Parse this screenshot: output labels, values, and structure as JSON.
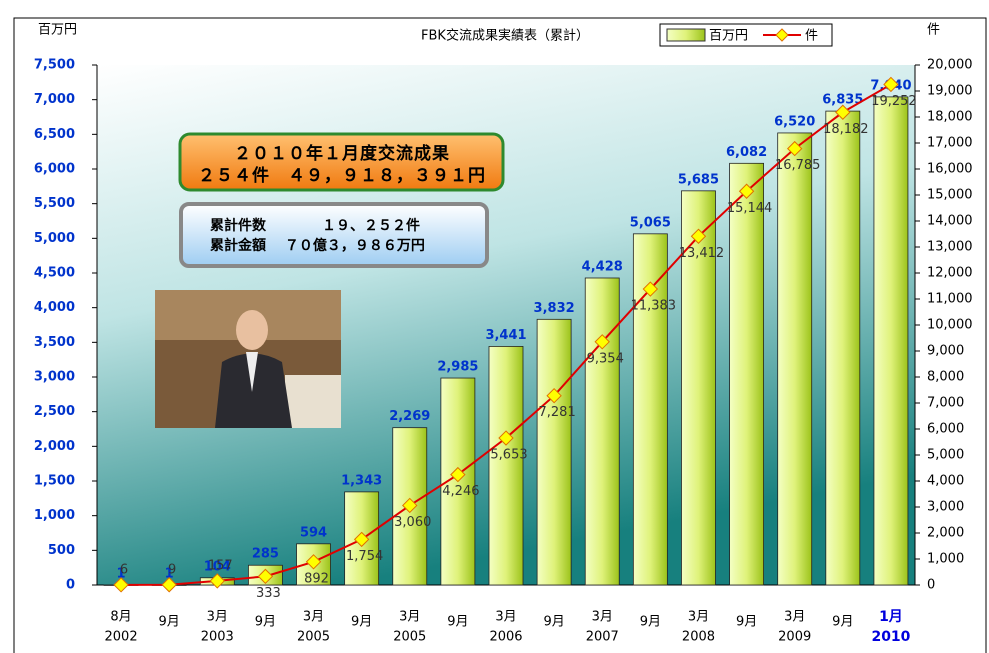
{
  "chart_data": {
    "type": "bar_line",
    "title": "FBK交流成果実績表（累計）",
    "y_axis_label": "百万円",
    "y2_axis_label": "件",
    "categories": [
      "8月",
      "9月",
      "3月",
      "9月",
      "3月",
      "9月",
      "3月",
      "9月",
      "3月",
      "9月",
      "3月",
      "9月",
      "3月",
      "9月",
      "3月",
      "9月",
      "1月"
    ],
    "category_years": [
      "2002",
      null,
      "2003",
      null,
      "2005",
      null,
      "2005",
      null,
      "2006",
      null,
      "2007",
      null,
      "2008",
      null,
      "2009",
      null,
      "2010"
    ],
    "series": [
      {
        "name": "百万円",
        "color": "#b8dc2c",
        "values": [
          1,
          1,
          104,
          285,
          594,
          1343,
          2269,
          2985,
          3441,
          3832,
          4428,
          5065,
          5685,
          6082,
          6520,
          6835,
          7040
        ],
        "value_labels": [
          "1",
          "1",
          "104",
          "285",
          "594",
          "1,343",
          "2,269",
          "2,985",
          "3,441",
          "3,832",
          "4,428",
          "5,065",
          "5,685",
          "6,082",
          "6,520",
          "6,835",
          "7,040"
        ]
      },
      {
        "name": "件",
        "color": "#e00000",
        "axis": "y2",
        "marker_color": "#ffff00",
        "values": [
          6,
          9,
          157,
          333,
          892,
          1754,
          3060,
          4246,
          5653,
          7281,
          9354,
          11383,
          13412,
          15144,
          16785,
          18182,
          19252
        ],
        "value_labels": [
          "6",
          "9",
          "157",
          "333",
          "892",
          "1,754",
          "3,060",
          "4,246",
          "5,653",
          "7,281",
          "9,354",
          "11,383",
          "13,412",
          "15,144",
          "16,785",
          "18,182",
          "19,252"
        ]
      }
    ],
    "ylim": [
      0,
      7500
    ],
    "yticks": [
      0,
      500,
      {
        "value": 1000,
        "label": "1,000"
      },
      {
        "value": 1500,
        "label": "1,500"
      },
      {
        "value": 2000,
        "label": "2,000"
      },
      {
        "value": 2500,
        "label": "2,500"
      },
      {
        "value": 3000,
        "label": "3,000"
      },
      {
        "value": 3500,
        "label": "3,500"
      },
      {
        "value": 4000,
        "label": "4,000"
      },
      {
        "value": 4500,
        "label": "4,500"
      },
      {
        "value": 5000,
        "label": "5,000"
      },
      {
        "value": 5500,
        "label": "5,500"
      },
      {
        "value": 6000,
        "label": "6,000"
      },
      {
        "value": 6500,
        "label": "6,500"
      },
      {
        "value": 7000,
        "label": "7,000"
      },
      {
        "value": 7500,
        "label": "7,500"
      }
    ],
    "y2lim": [
      0,
      20000
    ],
    "y2ticks": [
      0,
      {
        "value": 1000,
        "label": "1,000"
      },
      {
        "value": 2000,
        "label": "2,000"
      },
      {
        "value": 3000,
        "label": "3,000"
      },
      {
        "value": 4000,
        "label": "4,000"
      },
      {
        "value": 5000,
        "label": "5,000"
      },
      {
        "value": 6000,
        "label": "6,000"
      },
      {
        "value": 7000,
        "label": "7,000"
      },
      {
        "value": 8000,
        "label": "8,000"
      },
      {
        "value": 9000,
        "label": "9,000"
      },
      {
        "value": 10000,
        "label": "10,000"
      },
      {
        "value": 11000,
        "label": "11,000"
      },
      {
        "value": 12000,
        "label": "12,000"
      },
      {
        "value": 13000,
        "label": "13,000"
      },
      {
        "value": 14000,
        "label": "14,000"
      },
      {
        "value": 15000,
        "label": "15,000"
      },
      {
        "value": 16000,
        "label": "16,000"
      },
      {
        "value": 17000,
        "label": "17,000"
      },
      {
        "value": 18000,
        "label": "18,000"
      },
      {
        "value": 19000,
        "label": "19,000"
      },
      {
        "value": 20000,
        "label": "20,000"
      }
    ],
    "annotations": {
      "highlight_line1": "２０１０年１月度交流成果",
      "highlight_line2": "２５４件　４９，９１８，３９１円",
      "summary_line1": "累計件数　　　　１９、２５２件",
      "summary_line2": "累計金額　 ７０億３，９８６万円"
    }
  }
}
